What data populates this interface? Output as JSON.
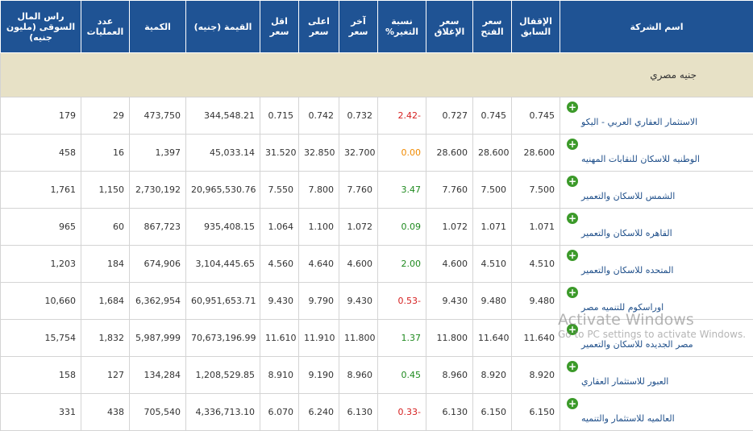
{
  "table": {
    "headers": [
      "اسم الشركة",
      "الإقفال السابق",
      "سعر الفتح",
      "سعر الإغلاق",
      "نسبة التغير%",
      "آخر سعر",
      "اعلى سعر",
      "اقل سعر",
      "القيمة (جنيه)",
      "الكمية",
      "عدد العمليات",
      "راس المال السوقى (مليون جنيه)"
    ],
    "section": "جنيه مصري",
    "rows": [
      [
        "الاستثمار العقاري العربي - اليكو",
        "0.745",
        "0.745",
        "0.727",
        "2.42-",
        "0.732",
        "0.742",
        "0.715",
        "344,548.21",
        "473,750",
        "29",
        "179"
      ],
      [
        "الوطنيه للاسكان للنقابات المهنيه",
        "28.600",
        "28.600",
        "28.600",
        "0.00",
        "32.700",
        "32.850",
        "31.520",
        "45,033.14",
        "1,397",
        "16",
        "458"
      ],
      [
        "الشمس للاسكان والتعمير",
        "7.500",
        "7.500",
        "7.760",
        "3.47",
        "7.760",
        "7.800",
        "7.550",
        "20,965,530.76",
        "2,730,192",
        "1,150",
        "1,761"
      ],
      [
        "القاهره للاسكان والتعمير",
        "1.071",
        "1.071",
        "1.072",
        "0.09",
        "1.072",
        "1.100",
        "1.064",
        "935,408.15",
        "867,723",
        "60",
        "965"
      ],
      [
        "المتحده للاسكان والتعمير",
        "4.510",
        "4.510",
        "4.600",
        "2.00",
        "4.600",
        "4.640",
        "4.560",
        "3,104,445.65",
        "674,906",
        "184",
        "1,203"
      ],
      [
        "اوراسكوم للتنميه مصر",
        "9.480",
        "9.480",
        "9.430",
        "0.53-",
        "9.430",
        "9.790",
        "9.430",
        "60,951,653.71",
        "6,362,954",
        "1,684",
        "10,660"
      ],
      [
        "مصر الجديده للاسكان والتعمير",
        "11.640",
        "11.640",
        "11.800",
        "1.37",
        "11.800",
        "11.910",
        "11.610",
        "70,673,196.99",
        "5,987,999",
        "1,832",
        "15,754"
      ],
      [
        "العبور للاستثمار العقاري",
        "8.920",
        "8.920",
        "8.960",
        "0.45",
        "8.960",
        "9.190",
        "8.910",
        "1,208,529.85",
        "134,284",
        "127",
        "158"
      ],
      [
        "العالميه للاستثمار والتنميه",
        "6.150",
        "6.150",
        "6.130",
        "0.33-",
        "6.130",
        "6.240",
        "6.070",
        "4,336,713.10",
        "705,540",
        "438",
        "331"
      ]
    ]
  },
  "watermark": {
    "title": "Activate Windows",
    "text": "Go to PC settings to activate Windows."
  }
}
